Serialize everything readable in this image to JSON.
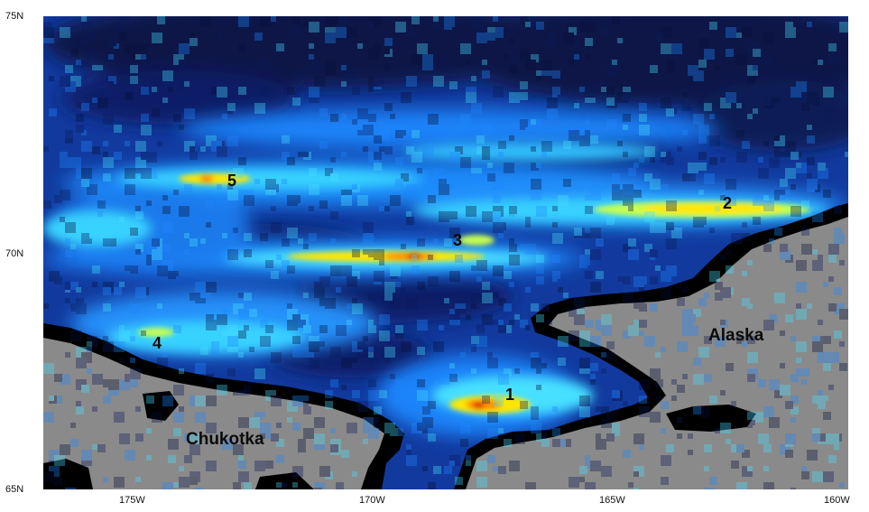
{
  "map": {
    "latitude_ticks": [
      "75N",
      "70N",
      "65N"
    ],
    "longitude_ticks": [
      "175W",
      "170W",
      "165W",
      "160W"
    ],
    "regions": {
      "chukotka": "Chukotka",
      "alaska": "Alaska"
    },
    "hotspots": [
      "1",
      "2",
      "3",
      "4",
      "5"
    ],
    "colors": {
      "land": "#8a8a8a",
      "coast": "#000000",
      "low": "#0a1a5a",
      "mid": "#1e88ff",
      "high": "#39d2ff",
      "hot_yellow": "#ffe600",
      "hot_orange": "#ff8a00",
      "hot_red": "#d62000"
    },
    "colormap": "jet"
  }
}
